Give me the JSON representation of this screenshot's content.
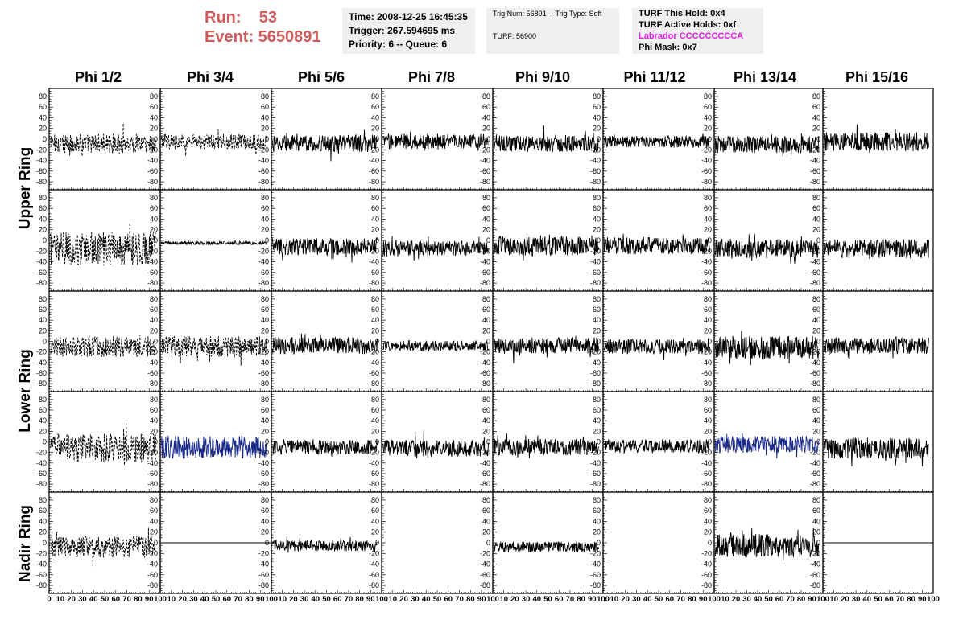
{
  "header": {
    "run_label": "Run:    53",
    "event_label": "Event: 5650891",
    "time": "Time: 2008-12-25 16:45:35",
    "trigger": "Trigger: 267.594695 ms",
    "priority": "Priority: 6 -- Queue: 6",
    "trig_num": "Trig Num: 56891 -- Trig Type: Soft",
    "turf": "TURF: 56900",
    "turf_this_hold": "TURF This Hold: 0x4",
    "turf_active_holds": "TURF Active Holds: 0xf",
    "labrador": "Labrador CCCCCCCCCA",
    "phi_mask": "Phi Mask: 0x7"
  },
  "columns": [
    "Phi 1/2",
    "Phi 3/4",
    "Phi 5/6",
    "Phi 7/8",
    "Phi 9/10",
    "Phi 11/12",
    "Phi 13/14",
    "Phi 15/16"
  ],
  "rows": [
    "Upper Ring",
    "Lower Ring",
    "Nadir Ring"
  ],
  "colors": {
    "trace": "#000000",
    "highlight_trace": "#1a2a8a",
    "run_text": "#cf5b5b",
    "labrador": "#e020e0"
  },
  "chart_data": {
    "type": "line",
    "grid": "8 columns x 5 rows of small-multiple waveform panels",
    "ytick_labels": [
      "80",
      "60",
      "40",
      "20",
      "0",
      "-20",
      "-40",
      "-60",
      "-80"
    ],
    "xtick_labels": [
      "0",
      "10",
      "20",
      "30",
      "40",
      "50",
      "60",
      "70",
      "80",
      "90",
      "100"
    ],
    "xlim": [
      0,
      100
    ],
    "ylim": [
      -95,
      95
    ],
    "panels": [
      {
        "row": 0,
        "col": 0,
        "style": "dashed",
        "color": "black",
        "offset": -8,
        "amp": 18
      },
      {
        "row": 0,
        "col": 1,
        "style": "dashed",
        "color": "black",
        "offset": -5,
        "amp": 14
      },
      {
        "row": 0,
        "col": 2,
        "style": "solid",
        "color": "black",
        "offset": -8,
        "amp": 16
      },
      {
        "row": 0,
        "col": 3,
        "style": "solid",
        "color": "black",
        "offset": -4,
        "amp": 14
      },
      {
        "row": 0,
        "col": 4,
        "style": "solid",
        "color": "black",
        "offset": -8,
        "amp": 16
      },
      {
        "row": 0,
        "col": 5,
        "style": "solid",
        "color": "black",
        "offset": -5,
        "amp": 11
      },
      {
        "row": 0,
        "col": 6,
        "style": "solid",
        "color": "black",
        "offset": -10,
        "amp": 16
      },
      {
        "row": 0,
        "col": 7,
        "style": "solid",
        "color": "black",
        "offset": -5,
        "amp": 18
      },
      {
        "row": 1,
        "col": 0,
        "style": "dashed",
        "color": "black",
        "offset": -15,
        "amp": 32
      },
      {
        "row": 1,
        "col": 1,
        "style": "solid",
        "color": "black",
        "offset": -5,
        "amp": 3
      },
      {
        "row": 1,
        "col": 2,
        "style": "solid",
        "color": "black",
        "offset": -12,
        "amp": 16
      },
      {
        "row": 1,
        "col": 3,
        "style": "solid",
        "color": "black",
        "offset": -15,
        "amp": 15
      },
      {
        "row": 1,
        "col": 4,
        "style": "solid",
        "color": "black",
        "offset": -10,
        "amp": 18
      },
      {
        "row": 1,
        "col": 5,
        "style": "solid",
        "color": "black",
        "offset": -10,
        "amp": 16
      },
      {
        "row": 1,
        "col": 6,
        "style": "solid",
        "color": "black",
        "offset": -15,
        "amp": 18
      },
      {
        "row": 1,
        "col": 7,
        "style": "solid",
        "color": "black",
        "offset": -15,
        "amp": 18
      },
      {
        "row": 2,
        "col": 0,
        "style": "dashed",
        "color": "black",
        "offset": -10,
        "amp": 20
      },
      {
        "row": 2,
        "col": 1,
        "style": "dashed",
        "color": "black",
        "offset": -10,
        "amp": 20
      },
      {
        "row": 2,
        "col": 2,
        "style": "solid",
        "color": "black",
        "offset": -8,
        "amp": 16
      },
      {
        "row": 2,
        "col": 3,
        "style": "solid",
        "color": "black",
        "offset": -8,
        "amp": 10
      },
      {
        "row": 2,
        "col": 4,
        "style": "solid",
        "color": "black",
        "offset": -8,
        "amp": 16
      },
      {
        "row": 2,
        "col": 5,
        "style": "solid",
        "color": "black",
        "offset": -10,
        "amp": 14
      },
      {
        "row": 2,
        "col": 6,
        "style": "solid",
        "color": "black",
        "offset": -12,
        "amp": 22
      },
      {
        "row": 2,
        "col": 7,
        "style": "solid",
        "color": "black",
        "offset": -8,
        "amp": 15
      },
      {
        "row": 3,
        "col": 0,
        "style": "dashed",
        "color": "black",
        "offset": -12,
        "amp": 28
      },
      {
        "row": 3,
        "col": 1,
        "style": "solid",
        "color": "blue",
        "offset": -10,
        "amp": 22
      },
      {
        "row": 3,
        "col": 2,
        "style": "solid",
        "color": "black",
        "offset": -10,
        "amp": 14
      },
      {
        "row": 3,
        "col": 3,
        "style": "solid",
        "color": "black",
        "offset": -12,
        "amp": 16
      },
      {
        "row": 3,
        "col": 4,
        "style": "solid",
        "color": "black",
        "offset": -10,
        "amp": 16
      },
      {
        "row": 3,
        "col": 5,
        "style": "solid",
        "color": "black",
        "offset": -8,
        "amp": 13
      },
      {
        "row": 3,
        "col": 6,
        "style": "solid",
        "color": "blue",
        "offset": -5,
        "amp": 16
      },
      {
        "row": 3,
        "col": 7,
        "style": "solid",
        "color": "black",
        "offset": -12,
        "amp": 20
      },
      {
        "row": 4,
        "col": 0,
        "style": "dashed",
        "color": "black",
        "offset": -8,
        "amp": 20
      },
      {
        "row": 4,
        "col": 1,
        "style": "flat",
        "color": "black",
        "offset": 0,
        "amp": 0
      },
      {
        "row": 4,
        "col": 2,
        "style": "solid",
        "color": "black",
        "offset": -6,
        "amp": 10
      },
      {
        "row": 4,
        "col": 3,
        "style": "empty",
        "color": "black",
        "offset": 0,
        "amp": 0
      },
      {
        "row": 4,
        "col": 4,
        "style": "solid",
        "color": "black",
        "offset": -8,
        "amp": 10
      },
      {
        "row": 4,
        "col": 5,
        "style": "empty",
        "color": "black",
        "offset": 0,
        "amp": 0
      },
      {
        "row": 4,
        "col": 6,
        "style": "solid",
        "color": "black",
        "offset": -5,
        "amp": 22
      },
      {
        "row": 4,
        "col": 7,
        "style": "flat",
        "color": "black",
        "offset": 0,
        "amp": 0
      }
    ]
  }
}
